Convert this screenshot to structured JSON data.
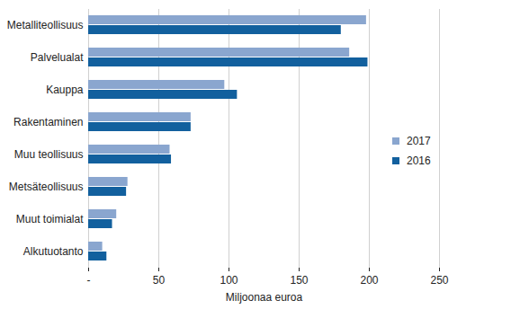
{
  "chart_data": {
    "type": "bar",
    "orientation": "horizontal",
    "categories": [
      "Metalliteollisuus",
      "Palvelualat",
      "Kauppa",
      "Rakentaminen",
      "Muu teollisuus",
      "Metsäteollisuus",
      "Muut toimialat",
      "Alkutuotanto"
    ],
    "series": [
      {
        "name": "2017",
        "color": "#8aa6cf",
        "values": [
          198,
          186,
          97,
          73,
          58,
          28,
          20,
          10
        ]
      },
      {
        "name": "2016",
        "color": "#12609e",
        "values": [
          180,
          199,
          106,
          73,
          59,
          27,
          17,
          13
        ]
      }
    ],
    "x_label": "Miljoonaa euroa",
    "xlim": [
      0,
      250
    ],
    "xticks": [
      {
        "value": 0,
        "label": "-"
      },
      50,
      100,
      150,
      200,
      250
    ],
    "grid": true,
    "legend": "right"
  }
}
